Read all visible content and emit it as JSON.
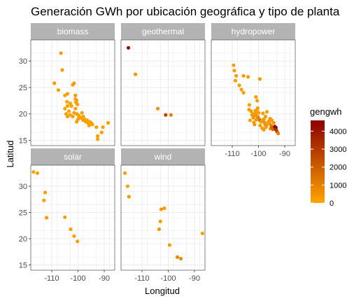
{
  "chart_data": {
    "type": "scatter",
    "title": "Generación GWh por ubicación geográfica y tipo de planta",
    "xlabel": "Longitud",
    "ylabel": "Latitud",
    "xlim": [
      -118,
      -86
    ],
    "ylim": [
      14,
      34
    ],
    "x_ticks": [
      -110,
      -100,
      -90
    ],
    "y_ticks": [
      15,
      20,
      25,
      30
    ],
    "grid": true,
    "legend": {
      "title": "gengwh",
      "position": "right",
      "type": "colorbar",
      "range": [
        0,
        4600
      ],
      "ticks": [
        0,
        1000,
        2000,
        3000,
        4000
      ],
      "color_low": "#FFA500",
      "color_high": "#8B0000"
    },
    "colors": {
      "strip_bg": "#b3b3b3",
      "panel_bg": "#ffffff",
      "grid": "#ebebeb",
      "border": "#333333"
    },
    "panels": [
      {
        "name": "biomass",
        "points": [
          [
            -106.5,
            31.5
          ],
          [
            -109,
            25.8
          ],
          [
            -106,
            28.3
          ],
          [
            -107.5,
            24.5
          ],
          [
            -105,
            23.5
          ],
          [
            -104,
            23.8
          ],
          [
            -102,
            25.5
          ],
          [
            -101.5,
            25.8
          ],
          [
            -101,
            23.5
          ],
          [
            -100.5,
            22.5
          ],
          [
            -100.2,
            21.8
          ],
          [
            -101,
            22.8
          ],
          [
            -103,
            22
          ],
          [
            -104,
            21.5
          ],
          [
            -105,
            21
          ],
          [
            -104.5,
            20
          ],
          [
            -104,
            19.5
          ],
          [
            -103.5,
            20.5
          ],
          [
            -103,
            19.8
          ],
          [
            -102,
            19.5
          ],
          [
            -101.5,
            20.2
          ],
          [
            -100.5,
            20
          ],
          [
            -100,
            19.8
          ],
          [
            -99.5,
            19.5
          ],
          [
            -99,
            19.2
          ],
          [
            -98.5,
            20.2
          ],
          [
            -98,
            19.5
          ],
          [
            -97.5,
            19
          ],
          [
            -97,
            18.5
          ],
          [
            -96.5,
            18.8
          ],
          [
            -96,
            18.2
          ],
          [
            -95.5,
            18.5
          ],
          [
            -95,
            18.3
          ],
          [
            -94.5,
            18
          ],
          [
            -93,
            17.5
          ],
          [
            -92.5,
            15.8
          ],
          [
            -92.5,
            15.2
          ],
          [
            -91,
            16.5
          ],
          [
            -90.5,
            17.5
          ],
          [
            -88.5,
            18.3
          ],
          [
            -101,
            21
          ],
          [
            -102.5,
            21.5
          ],
          [
            -100.5,
            18.5
          ],
          [
            -98,
            18.8
          ],
          [
            -104.2,
            22.3
          ],
          [
            -100.8,
            22.2
          ],
          [
            -95.8,
            17.8
          ],
          [
            -100,
            19
          ]
        ],
        "values": [
          200,
          300,
          250,
          150,
          100,
          180,
          220,
          260,
          300,
          150,
          120,
          180,
          90,
          110,
          140,
          160,
          100,
          130,
          150,
          170,
          110,
          190,
          140,
          160,
          120,
          180,
          150,
          130,
          170,
          140,
          160,
          180,
          150,
          120,
          200,
          140,
          110,
          130,
          170,
          160,
          150,
          120,
          140,
          160,
          110,
          150,
          130,
          140
        ]
      },
      {
        "name": "geothermal",
        "points": [
          [
            -115.2,
            32.5
          ],
          [
            -112.5,
            27.5
          ],
          [
            -104,
            21
          ],
          [
            -101,
            19.8
          ],
          [
            -99,
            19.8
          ]
        ],
        "values": [
          4200,
          300,
          600,
          2700,
          1000
        ]
      },
      {
        "name": "hydropower",
        "points": [
          [
            -109.5,
            29.2
          ],
          [
            -109.2,
            28.2
          ],
          [
            -108.5,
            27.2
          ],
          [
            -108.8,
            26.3
          ],
          [
            -107.3,
            25.4
          ],
          [
            -106.5,
            24.6
          ],
          [
            -105.7,
            24
          ],
          [
            -105.7,
            27.2
          ],
          [
            -104,
            27
          ],
          [
            -99.5,
            26.6
          ],
          [
            -101,
            23.2
          ],
          [
            -100.5,
            22.5
          ],
          [
            -103.5,
            21.7
          ],
          [
            -103.6,
            20.8
          ],
          [
            -102.8,
            20.5
          ],
          [
            -102.5,
            19.8
          ],
          [
            -102,
            19.3
          ],
          [
            -101.5,
            19.8
          ],
          [
            -101,
            20.2
          ],
          [
            -100.7,
            19.6
          ],
          [
            -100.2,
            19.4
          ],
          [
            -99.8,
            19
          ],
          [
            -99.5,
            18.8
          ],
          [
            -99,
            18.5
          ],
          [
            -98.5,
            18.8
          ],
          [
            -98,
            19
          ],
          [
            -97.8,
            18.4
          ],
          [
            -97.5,
            18
          ],
          [
            -97.2,
            17.5
          ],
          [
            -96.8,
            17.9
          ],
          [
            -96.5,
            18.2
          ],
          [
            -96.2,
            18.6
          ],
          [
            -95.8,
            18.3
          ],
          [
            -95.5,
            17.2
          ],
          [
            -95.2,
            17.8
          ],
          [
            -94.8,
            17.4
          ],
          [
            -94.5,
            17.1
          ],
          [
            -94.2,
            18.3
          ],
          [
            -93.8,
            17.6
          ],
          [
            -93.4,
            17.4
          ],
          [
            -93.3,
            17
          ],
          [
            -93,
            16.7
          ],
          [
            -92.5,
            16.3
          ],
          [
            -100.5,
            20.8
          ],
          [
            -101.2,
            20.6
          ],
          [
            -98.3,
            20.1
          ],
          [
            -96.8,
            20.4
          ],
          [
            -103.2,
            18.8
          ],
          [
            -101.8,
            18.4
          ],
          [
            -99.4,
            17.8
          ],
          [
            -98.6,
            17.3
          ],
          [
            -95.6,
            19.1
          ],
          [
            -100.9,
            18.9
          ],
          [
            -99.9,
            20.2
          ],
          [
            -97.3,
            19.5
          ],
          [
            -94.9,
            18.8
          ],
          [
            -101.5,
            18
          ],
          [
            -98,
            17
          ],
          [
            -102.2,
            20
          ],
          [
            -100.3,
            21.1
          ]
        ],
        "values": [
          200,
          250,
          300,
          200,
          180,
          150,
          120,
          300,
          200,
          350,
          250,
          200,
          150,
          300,
          250,
          200,
          500,
          600,
          300,
          400,
          800,
          1200,
          1500,
          300,
          200,
          400,
          600,
          500,
          350,
          300,
          250,
          200,
          300,
          400,
          1000,
          2000,
          1800,
          300,
          4300,
          4800,
          3500,
          2500,
          1000,
          200,
          250,
          300,
          200,
          150,
          300,
          250,
          200,
          300,
          400,
          250,
          300,
          200,
          350,
          300,
          250,
          200
        ]
      },
      {
        "name": "solar",
        "points": [
          [
            -117,
            32.7
          ],
          [
            -115.5,
            32.5
          ],
          [
            -112.5,
            28.8
          ],
          [
            -113,
            27.3
          ],
          [
            -112,
            24
          ],
          [
            -105,
            24.1
          ],
          [
            -102.8,
            21.8
          ],
          [
            -101.5,
            20.5
          ],
          [
            -100.2,
            19.5
          ]
        ],
        "values": [
          150,
          200,
          180,
          220,
          250,
          200,
          180,
          160,
          200
        ]
      },
      {
        "name": "wind",
        "points": [
          [
            -116.5,
            32.5
          ],
          [
            -115.5,
            30
          ],
          [
            -115,
            28
          ],
          [
            -102.7,
            25.6
          ],
          [
            -101.5,
            25.8
          ],
          [
            -103,
            23.3
          ],
          [
            -103.5,
            21.8
          ],
          [
            -99.5,
            18.8
          ],
          [
            -96.5,
            16.5
          ],
          [
            -95.2,
            16.2
          ],
          [
            -87,
            21
          ]
        ],
        "values": [
          200,
          150,
          250,
          300,
          200,
          250,
          300,
          180,
          800,
          600,
          200
        ]
      }
    ]
  }
}
